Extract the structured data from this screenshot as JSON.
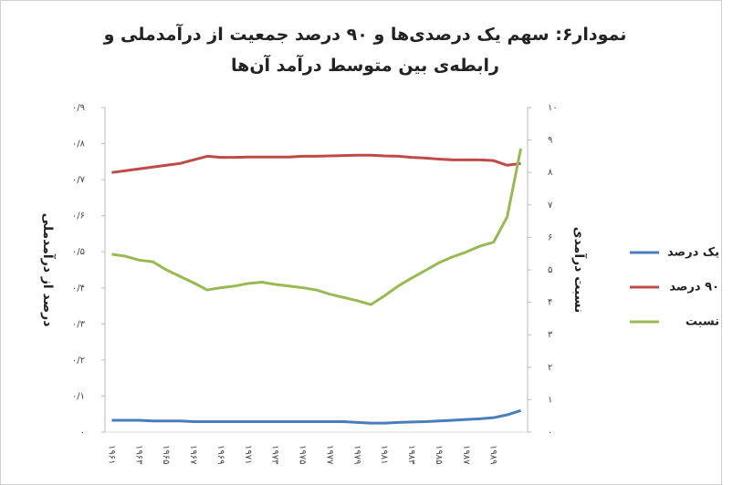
{
  "chart_data": {
    "type": "line",
    "title": "نمودار۶: سهم یک درصدی‌ها و ۹۰ درصد جمعیت از درآمدملی و",
    "subtitle": "رابطه‌ی بین متوسط درآمد آن‌ها",
    "y_label": "درصد از درآمدملی",
    "y2_label": "نسبت درآمدی",
    "categories": [
      "۱۹۶۱",
      null,
      "۱۹۶۳",
      null,
      "۱۹۶۵",
      null,
      "۱۹۶۷",
      null,
      "۱۹۶۹",
      null,
      "۱۹۷۱",
      null,
      "۱۹۷۳",
      null,
      "۱۹۷۵",
      null,
      "۱۹۷۷",
      null,
      "۱۹۷۹",
      null,
      "۱۹۸۱",
      null,
      "۱۹۸۳",
      null,
      "۱۹۸۵",
      null,
      "۱۹۸۷",
      null,
      "۱۹۸۹",
      null,
      null
    ],
    "series": [
      {
        "name": "یک درصد",
        "color": "#4a7ebb",
        "values": [
          0.033,
          0.033,
          0.033,
          0.031,
          0.031,
          0.031,
          0.029,
          0.029,
          0.029,
          0.029,
          0.029,
          0.029,
          0.029,
          0.029,
          0.029,
          0.029,
          0.029,
          0.029,
          0.027,
          0.025,
          0.025,
          0.027,
          0.028,
          0.029,
          0.031,
          0.033,
          0.035,
          0.037,
          0.04,
          0.048,
          0.06
        ]
      },
      {
        "name": "۹۰ درصد",
        "color": "#be4b48",
        "values": [
          0.72,
          0.725,
          0.73,
          0.735,
          0.74,
          0.745,
          0.755,
          0.765,
          0.762,
          0.762,
          0.763,
          0.763,
          0.763,
          0.763,
          0.765,
          0.765,
          0.766,
          0.767,
          0.768,
          0.768,
          0.766,
          0.765,
          0.762,
          0.76,
          0.757,
          0.755,
          0.755,
          0.755,
          0.753,
          0.74,
          0.745
        ]
      },
      {
        "name": "نسبت",
        "color": "#98b954",
        "axis": "y2",
        "values": [
          5.48,
          5.42,
          5.3,
          5.25,
          5.0,
          4.8,
          4.6,
          4.38,
          4.45,
          4.5,
          4.58,
          4.62,
          4.55,
          4.5,
          4.45,
          4.38,
          4.25,
          4.15,
          4.05,
          3.93,
          4.2,
          4.5,
          4.75,
          4.98,
          5.22,
          5.4,
          5.55,
          5.73,
          5.85,
          6.63,
          8.74
        ]
      }
    ],
    "ylim": [
      0,
      0.9
    ],
    "yticks": [
      {
        "value": 0,
        "label": "۰"
      },
      {
        "value": 0.1,
        "label": "۰/۱"
      },
      {
        "value": 0.2,
        "label": "۰/۲"
      },
      {
        "value": 0.3,
        "label": "۰/۳"
      },
      {
        "value": 0.4,
        "label": "۰/۴"
      },
      {
        "value": 0.5,
        "label": "۰/۵"
      },
      {
        "value": 0.6,
        "label": "۰/۶"
      },
      {
        "value": 0.7,
        "label": "۰/۷"
      },
      {
        "value": 0.8,
        "label": "۰/۸"
      },
      {
        "value": 0.9,
        "label": "۰/۹"
      }
    ],
    "y2lim": [
      0,
      10
    ],
    "y2ticks": [
      {
        "value": 0,
        "label": "۰"
      },
      {
        "value": 1,
        "label": "۱"
      },
      {
        "value": 2,
        "label": "۲"
      },
      {
        "value": 3,
        "label": "۳"
      },
      {
        "value": 4,
        "label": "۴"
      },
      {
        "value": 5,
        "label": "۵"
      },
      {
        "value": 6,
        "label": "۶"
      },
      {
        "value": 7,
        "label": "۷"
      },
      {
        "value": 8,
        "label": "۸"
      },
      {
        "value": 9,
        "label": "۹"
      },
      {
        "value": 10,
        "label": "۱۰"
      }
    ],
    "legend": "right",
    "grid": false
  }
}
